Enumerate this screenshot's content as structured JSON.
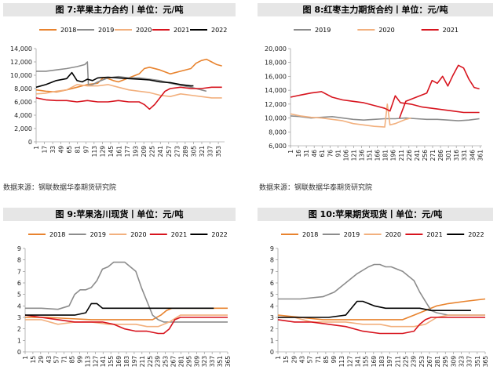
{
  "source_label": "数据来源：钢联数据华泰期货研究院",
  "colors": {
    "2018": "#e8832e",
    "2019": "#8c8c8c",
    "2020": "#f2b07e",
    "2021": "#d7141e",
    "2022": "#000000"
  },
  "chart_data": [
    {
      "type": "line",
      "title": "图 7:苹果主力合约丨单位：元/吨",
      "xlabel": "",
      "ylabel": "",
      "ylim": [
        0,
        14000
      ],
      "yticks": [
        "0",
        "2,000",
        "4,000",
        "6,000",
        "8,000",
        "10,000",
        "12,000",
        "14,000"
      ],
      "xticks": [
        "1",
        "17",
        "33",
        "49",
        "65",
        "81",
        "97",
        "113",
        "129",
        "145",
        "161",
        "177",
        "193",
        "209",
        "225",
        "241",
        "257",
        "273",
        "289",
        "305",
        "321",
        "337",
        "353"
      ],
      "legend_position": "top",
      "series": [
        {
          "name": "2018",
          "x": [
            1,
            20,
            40,
            60,
            80,
            100,
            120,
            130,
            140,
            150,
            160,
            180,
            200,
            210,
            220,
            240,
            260,
            280,
            300,
            310,
            320,
            330,
            340,
            350,
            360
          ],
          "values": [
            7800,
            7600,
            7500,
            7800,
            8200,
            8600,
            8800,
            9600,
            9500,
            9200,
            9000,
            9600,
            10200,
            11000,
            11200,
            10800,
            10200,
            10600,
            11000,
            11800,
            12200,
            12400,
            12000,
            11600,
            11400
          ]
        },
        {
          "name": "2019",
          "x": [
            1,
            20,
            40,
            60,
            80,
            95,
            100,
            102,
            110,
            120,
            140,
            160,
            180,
            200,
            220,
            240,
            260,
            280,
            300,
            320,
            330
          ],
          "values": [
            10600,
            10600,
            10800,
            11000,
            11300,
            11600,
            12000,
            8500,
            8600,
            9000,
            9600,
            9800,
            9600,
            9600,
            9400,
            9200,
            8800,
            8500,
            8200,
            7800,
            7600
          ]
        },
        {
          "name": "2020",
          "x": [
            1,
            20,
            40,
            60,
            80,
            100,
            120,
            140,
            160,
            180,
            200,
            220,
            240,
            260,
            280,
            300,
            320,
            340,
            360
          ],
          "values": [
            7200,
            7300,
            7600,
            7800,
            8600,
            8400,
            8400,
            8600,
            8200,
            7800,
            7600,
            7400,
            7000,
            6800,
            7200,
            7000,
            6800,
            6600,
            6600
          ]
        },
        {
          "name": "2021",
          "x": [
            1,
            20,
            40,
            60,
            80,
            100,
            120,
            140,
            160,
            180,
            200,
            210,
            220,
            230,
            240,
            250,
            260,
            280,
            300,
            320,
            340,
            360
          ],
          "values": [
            6600,
            6300,
            6200,
            6200,
            6000,
            6200,
            6000,
            6000,
            6200,
            6000,
            6000,
            5600,
            4900,
            5600,
            6600,
            7600,
            8000,
            8200,
            8000,
            8000,
            8200,
            8200
          ]
        },
        {
          "name": "2022",
          "x": [
            1,
            20,
            40,
            60,
            70,
            80,
            90,
            100,
            110,
            120,
            140,
            160,
            180,
            200,
            220,
            240,
            260,
            280,
            300,
            305
          ],
          "values": [
            8200,
            8600,
            9200,
            9500,
            10400,
            9200,
            9000,
            9400,
            9200,
            9600,
            9700,
            9600,
            9500,
            9400,
            9300,
            9000,
            8900,
            8600,
            8400,
            8400
          ]
        }
      ]
    },
    {
      "type": "line",
      "title": "图 8:红枣主力期货合约丨单位：元/吨",
      "xlabel": "",
      "ylabel": "",
      "ylim": [
        6000,
        20000
      ],
      "yticks": [
        "6,000",
        "8,000",
        "10,000",
        "12,000",
        "14,000",
        "16,000",
        "18,000",
        "20,000"
      ],
      "xticks": [
        "1",
        "16",
        "31",
        "46",
        "61",
        "76",
        "91",
        "106",
        "121",
        "136",
        "151",
        "166",
        "181",
        "196",
        "211",
        "226",
        "241",
        "256",
        "271",
        "286",
        "301",
        "316",
        "331",
        "346",
        "361"
      ],
      "legend_position": "top",
      "series": [
        {
          "name": "2019",
          "x": [
            1,
            20,
            40,
            60,
            80,
            100,
            120,
            140,
            160,
            180,
            200,
            220,
            240,
            260,
            280,
            300,
            320,
            340,
            360
          ],
          "values": [
            10300,
            10200,
            10000,
            10100,
            10200,
            10000,
            9800,
            9700,
            9800,
            9900,
            9900,
            10000,
            9900,
            9800,
            9800,
            9700,
            9600,
            9700,
            9900
          ]
        },
        {
          "name": "2020",
          "x": [
            1,
            20,
            40,
            60,
            80,
            100,
            120,
            140,
            160,
            180,
            185,
            190,
            200,
            210,
            220,
            230
          ],
          "values": [
            10600,
            10300,
            10100,
            10000,
            9800,
            9600,
            9200,
            9000,
            8800,
            8700,
            12000,
            9000,
            9200,
            9500,
            9800,
            10000
          ]
        },
        {
          "name": "2021",
          "x": [
            208,
            220,
            240,
            260,
            270,
            280,
            290,
            300,
            310,
            320,
            330,
            340,
            350,
            360
          ],
          "values": [
            10000,
            12400,
            13000,
            13600,
            15400,
            15000,
            16000,
            14600,
            16200,
            17600,
            17200,
            15600,
            14400,
            14200
          ]
        },
        {
          "name": "2021",
          "x": [
            1,
            20,
            40,
            60,
            80,
            100,
            120,
            140,
            160,
            180,
            190,
            200,
            210,
            230,
            250,
            270,
            290,
            310,
            330,
            350,
            360
          ],
          "values": [
            13000,
            13300,
            13600,
            13800,
            13000,
            12600,
            12400,
            12200,
            11800,
            11400,
            11000,
            13200,
            12200,
            12000,
            11600,
            11400,
            11200,
            11000,
            10800,
            10800,
            10800
          ]
        }
      ]
    },
    {
      "type": "line",
      "title": "图 9:苹果洛川现货丨单位：元/吨",
      "xlabel": "",
      "ylabel": "",
      "ylim": [
        0,
        9
      ],
      "yticks": [
        "0",
        "1",
        "2",
        "3",
        "4",
        "5",
        "6",
        "7",
        "8",
        "9"
      ],
      "xticks": [
        "1",
        "15",
        "29",
        "43",
        "57",
        "71",
        "85",
        "99",
        "113",
        "127",
        "141",
        "155",
        "169",
        "183",
        "197",
        "211",
        "225",
        "239",
        "253",
        "267",
        "281",
        "295",
        "309",
        "323",
        "337",
        "351",
        "365"
      ],
      "legend_position": "top",
      "series": [
        {
          "name": "2018",
          "x": [
            1,
            40,
            80,
            120,
            160,
            200,
            230,
            245,
            255,
            265,
            280,
            300,
            330,
            365
          ],
          "values": [
            3.0,
            3.0,
            2.9,
            2.8,
            2.8,
            2.8,
            2.8,
            3.2,
            3.6,
            3.8,
            3.8,
            3.8,
            3.8,
            3.8
          ]
        },
        {
          "name": "2019",
          "x": [
            1,
            30,
            60,
            80,
            90,
            100,
            110,
            120,
            130,
            140,
            150,
            160,
            180,
            200,
            210,
            220,
            230,
            240,
            250,
            260,
            280,
            300,
            330,
            365
          ],
          "values": [
            3.8,
            3.8,
            3.7,
            4.0,
            5.0,
            5.4,
            5.4,
            5.6,
            6.2,
            7.2,
            7.4,
            7.8,
            7.8,
            7.0,
            5.6,
            4.4,
            3.2,
            2.8,
            2.6,
            2.6,
            2.6,
            2.6,
            2.6,
            2.6
          ]
        },
        {
          "name": "2020",
          "x": [
            1,
            30,
            60,
            90,
            120,
            150,
            180,
            200,
            220,
            240,
            260,
            280,
            300,
            330,
            365
          ],
          "values": [
            2.8,
            2.8,
            2.4,
            2.6,
            2.6,
            2.4,
            2.4,
            2.4,
            2.2,
            2.2,
            2.6,
            3.2,
            3.2,
            3.2,
            3.2
          ]
        },
        {
          "name": "2021",
          "x": [
            1,
            30,
            60,
            90,
            120,
            140,
            160,
            180,
            200,
            220,
            240,
            250,
            260,
            270,
            280,
            300,
            330,
            365
          ],
          "values": [
            3.2,
            3.0,
            2.8,
            2.6,
            2.6,
            2.6,
            2.4,
            2.0,
            1.8,
            1.8,
            1.6,
            1.6,
            2.0,
            2.8,
            3.0,
            3.0,
            3.0,
            3.0
          ]
        },
        {
          "name": "2022",
          "x": [
            1,
            30,
            60,
            90,
            110,
            120,
            130,
            140,
            160,
            180,
            200,
            220,
            240,
            270,
            300,
            340
          ],
          "values": [
            3.2,
            3.2,
            3.2,
            3.2,
            3.4,
            4.2,
            4.2,
            3.8,
            3.8,
            3.8,
            3.8,
            3.8,
            3.8,
            3.8,
            3.8,
            3.8
          ]
        }
      ]
    },
    {
      "type": "line",
      "title": "图 10:苹果期货现货丨单位：元/吨",
      "xlabel": "",
      "ylabel": "",
      "ylim": [
        0,
        9
      ],
      "yticks": [
        "0",
        "1",
        "2",
        "3",
        "4",
        "5",
        "6",
        "7",
        "8",
        "9"
      ],
      "xticks": [
        "1",
        "15",
        "29",
        "43",
        "57",
        "71",
        "85",
        "99",
        "113",
        "127",
        "141",
        "155",
        "169",
        "183",
        "197",
        "211",
        "225",
        "239",
        "253",
        "267",
        "281",
        "295",
        "309",
        "323",
        "337",
        "351",
        "365"
      ],
      "legend_position": "top",
      "series": [
        {
          "name": "2018",
          "x": [
            1,
            40,
            80,
            120,
            160,
            200,
            220,
            240,
            260,
            280,
            300,
            330,
            365
          ],
          "values": [
            3.2,
            3.0,
            2.8,
            2.8,
            2.8,
            2.8,
            2.8,
            3.2,
            3.6,
            4.0,
            4.2,
            4.4,
            4.6
          ]
        },
        {
          "name": "2019",
          "x": [
            1,
            40,
            80,
            100,
            120,
            140,
            160,
            170,
            180,
            190,
            200,
            220,
            240,
            250,
            260,
            270,
            280,
            300,
            330,
            365
          ],
          "values": [
            4.6,
            4.6,
            4.8,
            5.2,
            6.0,
            6.8,
            7.4,
            7.6,
            7.6,
            7.4,
            7.4,
            7.0,
            6.2,
            5.2,
            4.4,
            3.6,
            3.4,
            3.2,
            3.2,
            3.2
          ]
        },
        {
          "name": "2020",
          "x": [
            1,
            30,
            60,
            90,
            120,
            150,
            180,
            200,
            220,
            240,
            260,
            280,
            300,
            330,
            365
          ],
          "values": [
            3.0,
            3.0,
            2.6,
            2.6,
            2.6,
            2.4,
            2.4,
            2.2,
            2.2,
            2.2,
            2.4,
            3.0,
            3.2,
            3.2,
            3.2
          ]
        },
        {
          "name": "2021",
          "x": [
            1,
            30,
            60,
            90,
            120,
            150,
            180,
            200,
            220,
            240,
            250,
            260,
            270,
            280,
            300,
            330,
            365
          ],
          "values": [
            2.8,
            2.6,
            2.6,
            2.4,
            2.2,
            1.8,
            1.6,
            1.6,
            1.6,
            1.8,
            2.4,
            2.8,
            3.0,
            3.0,
            3.0,
            3.0,
            3.0
          ]
        },
        {
          "name": "2022",
          "x": [
            1,
            30,
            60,
            90,
            120,
            130,
            140,
            150,
            170,
            190,
            210,
            230,
            250,
            270,
            300,
            340
          ],
          "values": [
            3.0,
            3.0,
            3.0,
            3.0,
            3.2,
            3.8,
            4.4,
            4.4,
            4.0,
            3.8,
            3.8,
            3.8,
            3.8,
            3.6,
            3.6,
            3.6
          ]
        }
      ]
    }
  ]
}
